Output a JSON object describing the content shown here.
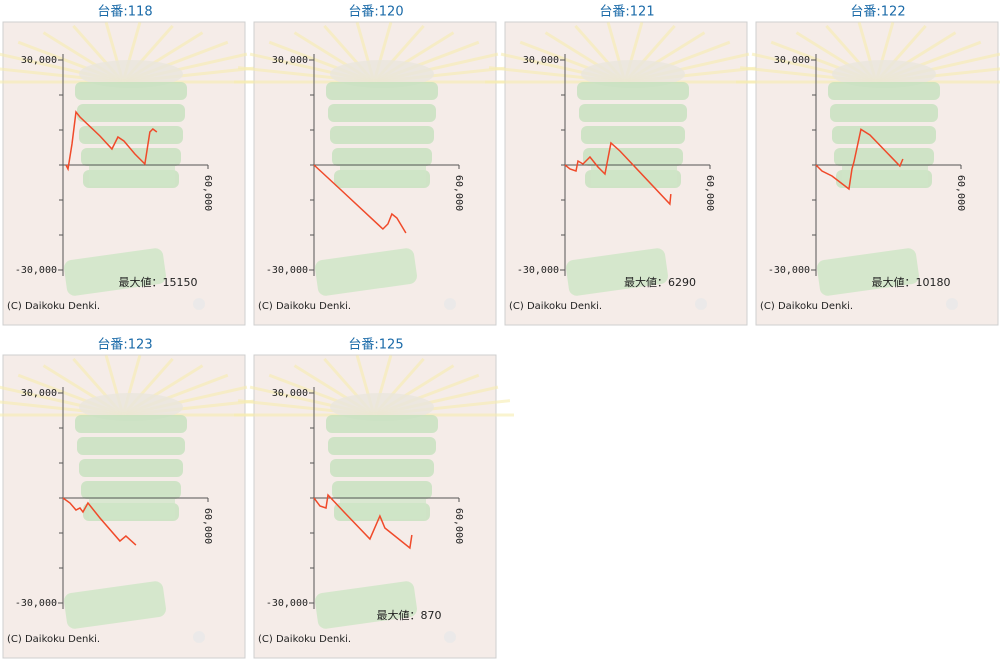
{
  "chart_data": [
    {
      "type": "line",
      "title": "台番:118",
      "max_label": "最大値：15150",
      "copyright": "(C) Daikoku Denki.",
      "color": "#f04a2a",
      "x": [
        1240,
        2070,
        3720,
        5370,
        7020,
        15290,
        20250,
        22730,
        25210,
        29750,
        33880,
        35950,
        37190,
        38840
      ],
      "values": [
        0,
        -1140,
        6000,
        15150,
        13710,
        8290,
        4570,
        8000,
        6860,
        3140,
        290,
        9430,
        10290,
        9430
      ],
      "xlim": [
        0,
        60000
      ],
      "xticks": [
        {
          "value": 60000,
          "label": "60,000"
        }
      ],
      "ylim": [
        -30000,
        30000
      ],
      "yticks": [
        {
          "value": 30000,
          "label": "30,000"
        },
        {
          "value": -30000,
          "label": "-30,000"
        }
      ],
      "yminorticks": [
        20000,
        10000,
        0,
        -10000,
        -20000
      ]
    },
    {
      "type": "line",
      "title": "台番:120",
      "copyright": "(C) Daikoku Denki.",
      "color": "#f04a2a",
      "x": [
        0,
        10740,
        28510,
        30580,
        32230,
        34300,
        38020
      ],
      "values": [
        0,
        -6860,
        -18290,
        -16860,
        -14000,
        -15140,
        -19430
      ],
      "xlim": [
        0,
        60000
      ],
      "xticks": [
        {
          "value": 60000,
          "label": "60,000"
        }
      ],
      "ylim": [
        -30000,
        30000
      ],
      "yticks": [
        {
          "value": 30000,
          "label": "30,000"
        },
        {
          "value": -30000,
          "label": "-30,000"
        }
      ],
      "yminorticks": [
        20000,
        10000,
        0,
        -10000,
        -20000
      ]
    },
    {
      "type": "line",
      "title": "台番:121",
      "max_label": "最大値：6290",
      "copyright": "(C) Daikoku Denki.",
      "color": "#f04a2a",
      "x": [
        0,
        2070,
        4550,
        5370,
        7440,
        10330,
        13640,
        16530,
        19010,
        22730,
        43390,
        43800
      ],
      "values": [
        0,
        -1140,
        -1710,
        1140,
        290,
        2290,
        -570,
        -2570,
        6290,
        4000,
        -11140,
        -8290
      ],
      "xlim": [
        0,
        60000
      ],
      "xticks": [
        {
          "value": 60000,
          "label": "60,000"
        }
      ],
      "ylim": [
        -30000,
        30000
      ],
      "yticks": [
        {
          "value": 30000,
          "label": "30,000"
        },
        {
          "value": -30000,
          "label": "-30,000"
        }
      ],
      "yminorticks": [
        20000,
        10000,
        0,
        -10000,
        -20000
      ]
    },
    {
      "type": "line",
      "title": "台番:122",
      "max_label": "最大値：10180",
      "copyright": "(C) Daikoku Denki.",
      "color": "#f04a2a",
      "x": [
        0,
        2480,
        6610,
        13640,
        14880,
        15700,
        18600,
        22310,
        34710,
        35950
      ],
      "values": [
        0,
        -1710,
        -3140,
        -6860,
        -1140,
        860,
        10180,
        8570,
        -290,
        1710
      ],
      "xlim": [
        0,
        60000
      ],
      "xticks": [
        {
          "value": 60000,
          "label": "60,000"
        }
      ],
      "ylim": [
        -30000,
        30000
      ],
      "yticks": [
        {
          "value": 30000,
          "label": "30,000"
        },
        {
          "value": -30000,
          "label": "-30,000"
        }
      ],
      "yminorticks": [
        20000,
        10000,
        0,
        -10000,
        -20000
      ]
    },
    {
      "type": "line",
      "title": "台番:123",
      "copyright": "(C) Daikoku Denki.",
      "color": "#f04a2a",
      "x": [
        0,
        2890,
        5370,
        7020,
        8260,
        10330,
        15290,
        23550,
        26030,
        30170
      ],
      "values": [
        0,
        -1430,
        -3430,
        -2860,
        -4000,
        -1430,
        -5710,
        -12290,
        -10860,
        -13430
      ],
      "xlim": [
        0,
        60000
      ],
      "xticks": [
        {
          "value": 60000,
          "label": "60,000"
        }
      ],
      "ylim": [
        -30000,
        30000
      ],
      "yticks": [
        {
          "value": 30000,
          "label": "30,000"
        },
        {
          "value": -30000,
          "label": "-30,000"
        }
      ],
      "yminorticks": [
        20000,
        10000,
        0,
        -10000,
        -20000
      ]
    },
    {
      "type": "line",
      "title": "台番:125",
      "max_label": "最大値：870",
      "copyright": "(C) Daikoku Denki.",
      "color": "#f04a2a",
      "x": [
        0,
        2480,
        4960,
        5790,
        12810,
        23140,
        27270,
        29340,
        39670,
        40500
      ],
      "values": [
        0,
        -2290,
        -2860,
        870,
        -4290,
        -11710,
        -5140,
        -8570,
        -14290,
        -10570
      ],
      "xlim": [
        0,
        60000
      ],
      "xticks": [
        {
          "value": 60000,
          "label": "60,000"
        }
      ],
      "ylim": [
        -30000,
        30000
      ],
      "yticks": [
        {
          "value": 30000,
          "label": "30,000"
        },
        {
          "value": -30000,
          "label": "-30,000"
        }
      ],
      "yminorticks": [
        20000,
        10000,
        0,
        -10000,
        -20000
      ]
    }
  ]
}
